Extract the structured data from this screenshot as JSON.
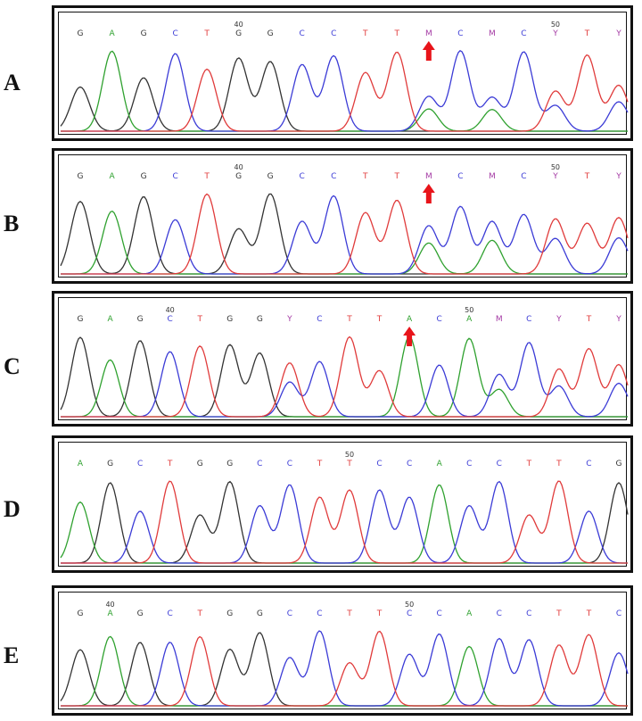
{
  "colors": {
    "A": "#2fa12f",
    "C": "#3b3bd6",
    "G": "#333333",
    "T": "#e03b3b",
    "ambig": "#a43aa4",
    "arrow": "#e8141a"
  },
  "panels": [
    {
      "label": "A",
      "bases": "GAGCTGGCCTTMCMCYTY",
      "positions": [
        {
          "idx": 5,
          "text": "40"
        },
        {
          "idx": 15,
          "text": "50"
        }
      ],
      "arrow": 11
    },
    {
      "label": "B",
      "bases": "GAGCTGGCCTTMCMCYTY",
      "positions": [
        {
          "idx": 5,
          "text": "40"
        },
        {
          "idx": 15,
          "text": "50"
        }
      ],
      "arrow": 11
    },
    {
      "label": "C",
      "bases": "GAGCTGGYCTTACAMCYTY",
      "positions": [
        {
          "idx": 3,
          "text": "40"
        },
        {
          "idx": 13,
          "text": "50"
        }
      ],
      "arrow": 11
    },
    {
      "label": "D",
      "bases": "AGCTGGCCTTCCACCTTCG",
      "positions": [
        {
          "idx": 9,
          "text": "50"
        }
      ],
      "arrow": null
    },
    {
      "label": "E",
      "bases": "GAGCTGGCCTTCCACCTTC",
      "positions": [
        {
          "idx": 1,
          "text": "40"
        },
        {
          "idx": 11,
          "text": "50"
        }
      ],
      "arrow": null
    }
  ]
}
